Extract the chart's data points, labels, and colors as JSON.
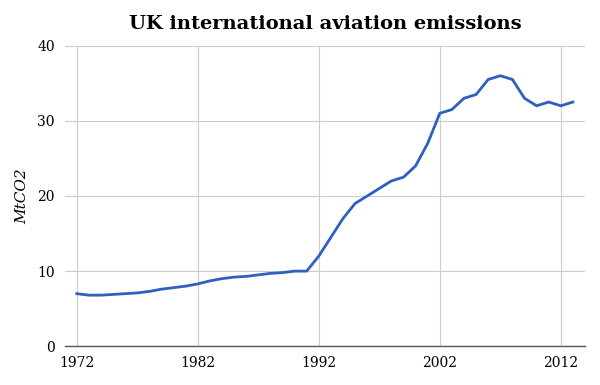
{
  "title": "UK international aviation emissions",
  "ylabel": "MtCO2",
  "line_color": "#2f5fbf",
  "line_width": 2.0,
  "background_color": "#ffffff",
  "grid_color": "#cccccc",
  "xlim": [
    1971,
    2014
  ],
  "ylim": [
    0,
    40
  ],
  "xticks": [
    1972,
    1982,
    1992,
    2002,
    2012
  ],
  "yticks": [
    0,
    10,
    20,
    30,
    40
  ],
  "years": [
    1972,
    1973,
    1974,
    1975,
    1976,
    1977,
    1978,
    1979,
    1980,
    1981,
    1982,
    1983,
    1984,
    1985,
    1986,
    1987,
    1988,
    1989,
    1990,
    1991,
    1992,
    1993,
    1994,
    1995,
    1996,
    1997,
    1998,
    1999,
    2000,
    2001,
    2002,
    2003,
    2004,
    2005,
    2006,
    2007,
    2008,
    2009,
    2010,
    2011,
    2012,
    2013
  ],
  "values": [
    7.0,
    6.8,
    6.8,
    6.9,
    7.0,
    7.1,
    7.3,
    7.6,
    7.8,
    8.0,
    8.3,
    8.7,
    9.0,
    9.2,
    9.3,
    9.5,
    9.7,
    9.8,
    10.0,
    10.0,
    12.0,
    14.5,
    17.0,
    19.0,
    20.0,
    21.0,
    22.0,
    22.5,
    24.0,
    27.0,
    31.0,
    31.5,
    33.0,
    33.5,
    35.5,
    36.0,
    35.5,
    33.0,
    32.0,
    32.5,
    32.0,
    32.5
  ]
}
